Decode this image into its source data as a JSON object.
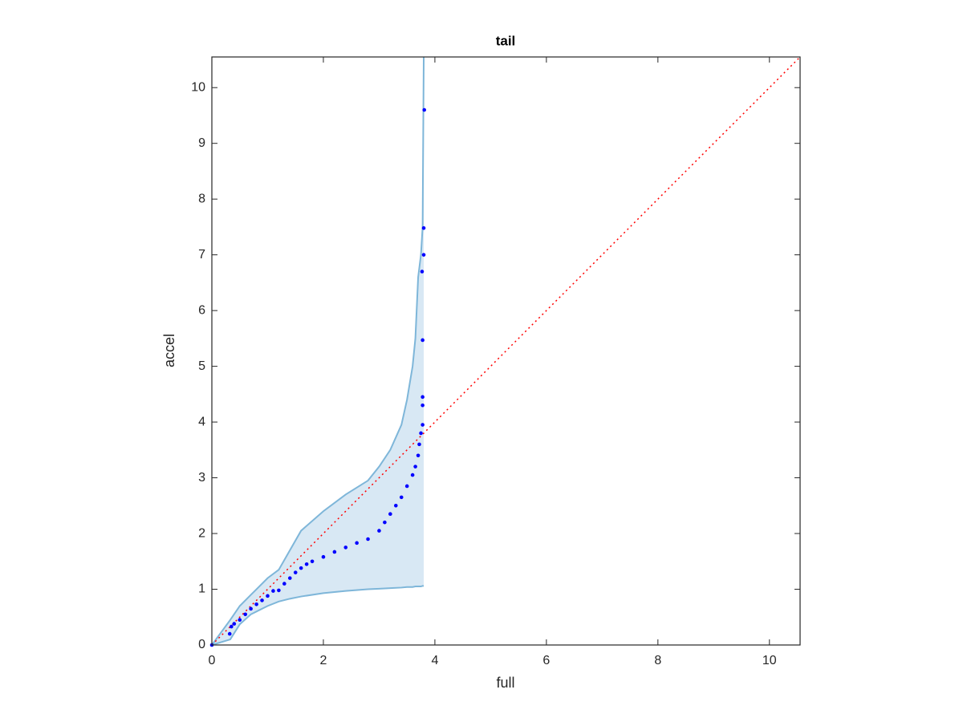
{
  "chart_data": {
    "type": "scatter",
    "title": "tail",
    "xlabel": "full",
    "ylabel": "accel",
    "xlim": [
      0,
      10.55
    ],
    "ylim": [
      0,
      10.55
    ],
    "xticks": [
      0,
      2,
      4,
      6,
      8,
      10
    ],
    "yticks": [
      0,
      1,
      2,
      3,
      4,
      5,
      6,
      7,
      8,
      9,
      10
    ],
    "grid": false,
    "points": {
      "color": "#0000ff",
      "x": [
        0,
        0.32,
        0.35,
        0.4,
        0.5,
        0.6,
        0.7,
        0.8,
        0.9,
        1.0,
        1.1,
        1.2,
        1.3,
        1.4,
        1.5,
        1.6,
        1.7,
        1.8,
        2.0,
        2.2,
        2.4,
        2.6,
        2.8,
        3.0,
        3.1,
        3.2,
        3.3,
        3.4,
        3.5,
        3.6,
        3.65,
        3.7,
        3.72,
        3.75,
        3.78,
        3.78,
        3.78,
        3.78,
        3.77,
        3.8,
        3.8,
        3.81
      ],
      "y": [
        0,
        0.2,
        0.33,
        0.38,
        0.45,
        0.55,
        0.65,
        0.73,
        0.8,
        0.88,
        0.97,
        0.98,
        1.1,
        1.2,
        1.3,
        1.38,
        1.45,
        1.5,
        1.58,
        1.67,
        1.75,
        1.83,
        1.9,
        2.05,
        2.2,
        2.35,
        2.5,
        2.65,
        2.85,
        3.05,
        3.2,
        3.4,
        3.6,
        3.8,
        3.95,
        4.3,
        4.45,
        5.47,
        6.7,
        7.0,
        7.48,
        9.6
      ]
    },
    "band": {
      "color": "#7eb6d9",
      "fill": "#d8e8f4",
      "x": [
        0,
        0.33,
        0.5,
        0.7,
        0.8,
        1.0,
        1.2,
        1.4,
        1.6,
        2.0,
        2.4,
        2.8,
        3.0,
        3.2,
        3.4,
        3.5,
        3.6,
        3.65,
        3.7,
        3.75,
        3.78,
        3.8
      ],
      "upper": [
        0,
        0.45,
        0.7,
        0.9,
        1.0,
        1.2,
        1.35,
        1.7,
        2.05,
        2.4,
        2.7,
        2.95,
        3.2,
        3.5,
        3.95,
        4.4,
        5.0,
        5.5,
        6.6,
        7.0,
        7.5,
        10.55
      ],
      "lower": [
        0,
        0.1,
        0.37,
        0.55,
        0.6,
        0.7,
        0.78,
        0.83,
        0.87,
        0.93,
        0.97,
        1.0,
        1.01,
        1.02,
        1.03,
        1.04,
        1.04,
        1.05,
        1.05,
        1.05,
        1.06,
        1.06
      ]
    },
    "reference": {
      "color": "#ff0000",
      "x": [
        0,
        10.55
      ],
      "y": [
        0,
        10.55
      ]
    }
  }
}
